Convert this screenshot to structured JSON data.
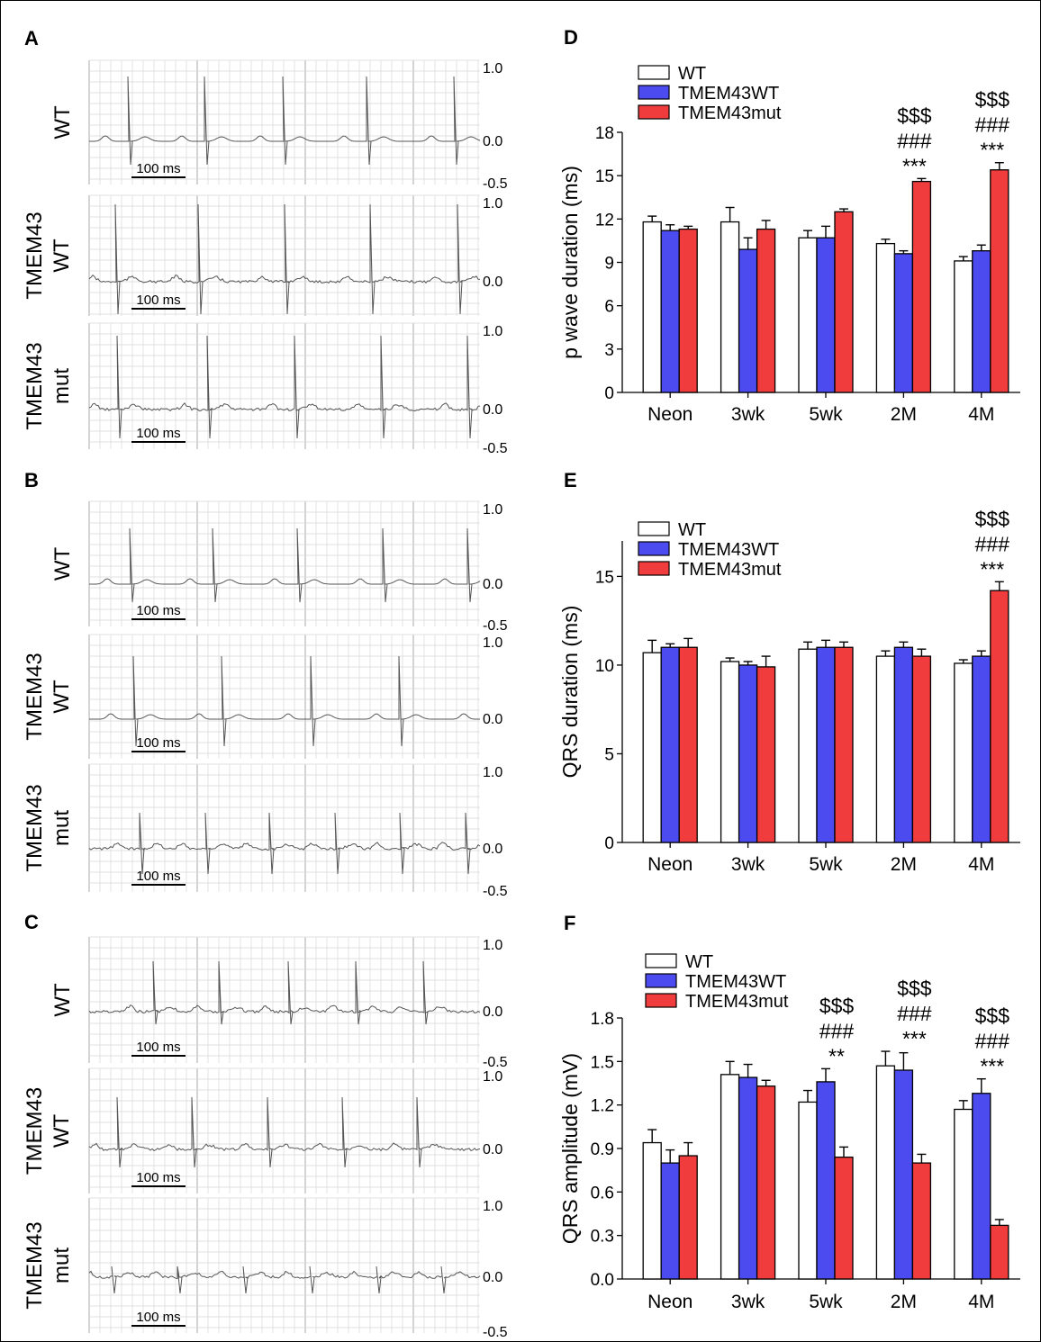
{
  "ecg": {
    "panels": [
      {
        "letter": "A",
        "rows": [
          {
            "label_lines": [
              "WT"
            ],
            "scale_label": "100 ms",
            "amp_labels": [
              "1.0",
              "0.0",
              "-0.5"
            ]
          },
          {
            "label_lines": [
              "TMEM43",
              "WT"
            ],
            "scale_label": "100 ms",
            "amp_labels": [
              "1.0",
              "0.0"
            ]
          },
          {
            "label_lines": [
              "TMEM43",
              "mut"
            ],
            "scale_label": "100 ms",
            "amp_labels": [
              "1.0",
              "0.0",
              "-0.5"
            ]
          }
        ]
      },
      {
        "letter": "B",
        "rows": [
          {
            "label_lines": [
              "WT"
            ],
            "scale_label": "100 ms",
            "amp_labels": [
              "1.0",
              "0.0",
              "-0.5"
            ]
          },
          {
            "label_lines": [
              "TMEM43",
              "WT"
            ],
            "scale_label": "100 ms",
            "amp_labels": [
              "1.0",
              "0.0"
            ]
          },
          {
            "label_lines": [
              "TMEM43",
              "mut"
            ],
            "scale_label": "100 ms",
            "amp_labels": [
              "1.0",
              "0.0",
              "-0.5"
            ]
          }
        ]
      },
      {
        "letter": "C",
        "rows": [
          {
            "label_lines": [
              "WT"
            ],
            "scale_label": "100 ms",
            "amp_labels": [
              "1.0",
              "0.0",
              "-0.5"
            ]
          },
          {
            "label_lines": [
              "TMEM43",
              "WT"
            ],
            "scale_label": "100 ms",
            "amp_labels": [
              "1.0",
              "0.0"
            ]
          },
          {
            "label_lines": [
              "TMEM43",
              "mut"
            ],
            "scale_label": "100 ms",
            "amp_labels": [
              "1.0",
              "0.0",
              "-0.5"
            ]
          }
        ]
      }
    ]
  },
  "chart_data": [
    {
      "panel": "D",
      "type": "bar",
      "ylabel": "p wave duration (ms)",
      "xlabel": "",
      "ylim": [
        0,
        18
      ],
      "yticks": [
        "0",
        "3",
        "6",
        "9",
        "12",
        "15",
        "18"
      ],
      "categories": [
        "Neon",
        "3wk",
        "5wk",
        "2M",
        "4M"
      ],
      "legend_position": "top-left",
      "series": [
        {
          "name": "WT",
          "color": "#ffffff",
          "values": [
            11.8,
            11.8,
            10.7,
            10.3,
            9.1
          ],
          "errors": [
            0.4,
            1.0,
            0.5,
            0.3,
            0.3
          ]
        },
        {
          "name": "TMEM43WT",
          "color": "#4b4bf0",
          "values": [
            11.2,
            9.9,
            10.7,
            9.6,
            9.8
          ],
          "errors": [
            0.4,
            0.8,
            0.8,
            0.2,
            0.4
          ]
        },
        {
          "name": "TMEM43mut",
          "color": "#f03c3c",
          "values": [
            11.3,
            11.3,
            12.5,
            14.6,
            15.4
          ],
          "errors": [
            0.2,
            0.6,
            0.2,
            0.2,
            0.5
          ]
        }
      ],
      "significance": [
        {
          "category": "2M",
          "marks": [
            "$$$",
            "###",
            "***"
          ]
        },
        {
          "category": "4M",
          "marks": [
            "$$$",
            "###",
            "***"
          ]
        }
      ]
    },
    {
      "panel": "E",
      "type": "bar",
      "ylabel": "QRS duration (ms)",
      "xlabel": "",
      "ylim": [
        0,
        17
      ],
      "yticks": [
        "0",
        "5",
        "10",
        "15"
      ],
      "categories": [
        "Neon",
        "3wk",
        "5wk",
        "2M",
        "4M"
      ],
      "legend_position": "top-left",
      "series": [
        {
          "name": "WT",
          "color": "#ffffff",
          "values": [
            10.7,
            10.2,
            10.9,
            10.5,
            10.1
          ],
          "errors": [
            0.7,
            0.2,
            0.4,
            0.3,
            0.2
          ]
        },
        {
          "name": "TMEM43WT",
          "color": "#4b4bf0",
          "values": [
            11.0,
            10.0,
            11.0,
            11.0,
            10.5
          ],
          "errors": [
            0.2,
            0.2,
            0.4,
            0.3,
            0.3
          ]
        },
        {
          "name": "TMEM43mut",
          "color": "#f03c3c",
          "values": [
            11.0,
            9.9,
            11.0,
            10.5,
            14.2
          ],
          "errors": [
            0.5,
            0.6,
            0.3,
            0.4,
            0.5
          ]
        }
      ],
      "significance": [
        {
          "category": "4M",
          "marks": [
            "$$$",
            "###",
            "***"
          ]
        }
      ]
    },
    {
      "panel": "F",
      "type": "bar",
      "ylabel": "QRS amplitude (mV)",
      "xlabel": "",
      "ylim": [
        0,
        1.8
      ],
      "yticks": [
        "0.0",
        "0.3",
        "0.6",
        "0.9",
        "1.2",
        "1.5",
        "1.8"
      ],
      "categories": [
        "Neon",
        "3wk",
        "5wk",
        "2M",
        "4M"
      ],
      "legend_position": "top-left",
      "series": [
        {
          "name": "WT",
          "color": "#ffffff",
          "values": [
            0.94,
            1.41,
            1.22,
            1.47,
            1.17
          ],
          "errors": [
            0.09,
            0.09,
            0.08,
            0.1,
            0.06
          ]
        },
        {
          "name": "TMEM43WT",
          "color": "#4b4bf0",
          "values": [
            0.8,
            1.39,
            1.36,
            1.44,
            1.28
          ],
          "errors": [
            0.09,
            0.09,
            0.09,
            0.12,
            0.1
          ]
        },
        {
          "name": "TMEM43mut",
          "color": "#f03c3c",
          "values": [
            0.85,
            1.33,
            0.84,
            0.8,
            0.37
          ],
          "errors": [
            0.09,
            0.04,
            0.07,
            0.06,
            0.04
          ]
        }
      ],
      "significance": [
        {
          "category": "5wk",
          "marks": [
            "$$$",
            "###",
            "**"
          ]
        },
        {
          "category": "2M",
          "marks": [
            "$$$",
            "###",
            "***"
          ]
        },
        {
          "category": "4M",
          "marks": [
            "$$$",
            "###",
            "***"
          ]
        }
      ]
    }
  ]
}
